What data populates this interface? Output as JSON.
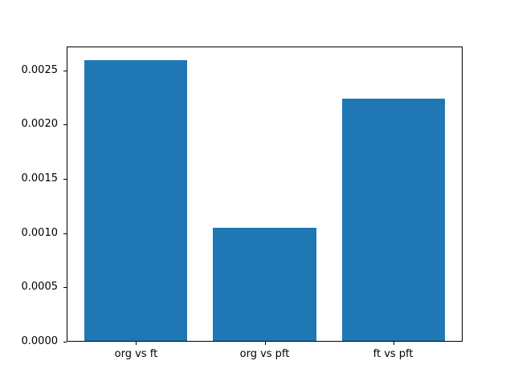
{
  "chart_data": {
    "type": "bar",
    "title": "",
    "xlabel": "",
    "ylabel": "",
    "categories": [
      "org vs ft",
      "org vs pft",
      "ft vs pft"
    ],
    "values": [
      0.00259,
      0.00104,
      0.00223
    ],
    "bar_color": "#1f77b4",
    "bar_width": 0.8,
    "xlim": [
      -0.54,
      2.54
    ],
    "ylim": [
      0,
      0.00272
    ],
    "yticks": [
      0.0,
      0.0005,
      0.001,
      0.0015,
      0.002,
      0.0025
    ],
    "ytick_labels": [
      "0.0000",
      "0.0005",
      "0.0010",
      "0.0015",
      "0.0020",
      "0.0025"
    ],
    "grid": false,
    "legend": "none",
    "background_color": "#ffffff",
    "spine_color": "#000000"
  }
}
